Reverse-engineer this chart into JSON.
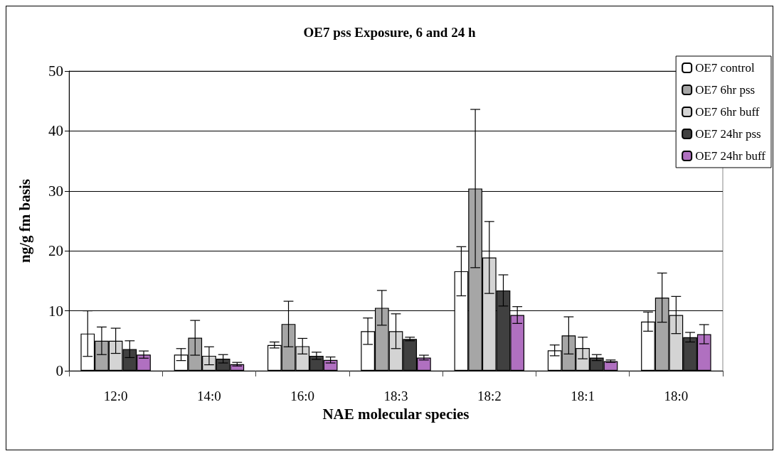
{
  "chart_data": {
    "type": "bar",
    "title": "OE7 pss Exposure, 6 and 24 h",
    "xlabel": "NAE molecular species",
    "ylabel": "ng/g fm basis",
    "categories": [
      "12:0",
      "14:0",
      "16:0",
      "18:3",
      "18:2",
      "18:1",
      "18:0"
    ],
    "series": [
      {
        "name": "OE7 control",
        "color": "#ffffff",
        "values": [
          6.2,
          2.7,
          4.3,
          6.6,
          16.6,
          3.4,
          8.2
        ],
        "errors": [
          3.8,
          1.0,
          0.5,
          2.2,
          4.1,
          0.9,
          1.6
        ]
      },
      {
        "name": "OE7 6hr pss",
        "color": "#a6a6a6",
        "values": [
          5.0,
          5.5,
          7.8,
          10.5,
          30.4,
          5.9,
          12.2
        ],
        "errors": [
          2.3,
          2.9,
          3.8,
          2.9,
          13.2,
          3.1,
          4.1
        ]
      },
      {
        "name": "OE7 6hr buff",
        "color": "#d4d4d4",
        "values": [
          5.0,
          2.5,
          4.1,
          6.6,
          18.9,
          3.8,
          9.3
        ],
        "errors": [
          2.1,
          1.5,
          1.3,
          2.9,
          6.0,
          1.8,
          3.1
        ]
      },
      {
        "name": "OE7 24hr pss",
        "color": "#404040",
        "values": [
          3.6,
          2.0,
          2.5,
          5.3,
          13.4,
          2.2,
          5.6
        ],
        "errors": [
          1.4,
          0.7,
          0.6,
          0.3,
          2.6,
          0.5,
          0.8
        ]
      },
      {
        "name": "OE7 24hr buff",
        "color": "#b070c0",
        "values": [
          2.7,
          1.1,
          1.8,
          2.2,
          9.3,
          1.6,
          6.1
        ],
        "errors": [
          0.6,
          0.3,
          0.5,
          0.4,
          1.4,
          0.2,
          1.6
        ]
      }
    ],
    "ylim": [
      0,
      50
    ],
    "yticks": [
      0,
      10,
      20,
      30,
      40,
      50
    ],
    "grid": "y",
    "legend": "top right"
  }
}
